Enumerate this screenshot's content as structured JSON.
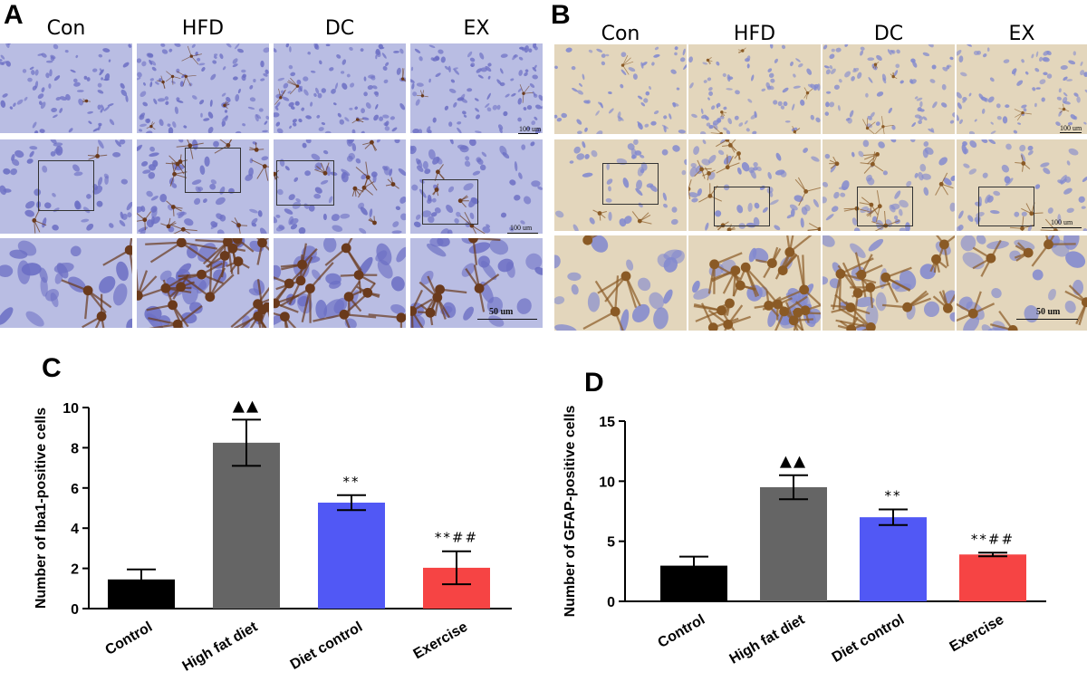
{
  "panels": {
    "a": {
      "letter": "A",
      "columns": [
        "Con",
        "HFD",
        "DC",
        "EX"
      ],
      "scale_top": "100 um",
      "scale_mid": "100 um",
      "scale_bottom": "50 um",
      "colors": {
        "bg": "#b9bde3",
        "nucleus": "#6c6fc4",
        "stain": "#6a3a1c"
      }
    },
    "b": {
      "letter": "B",
      "columns": [
        "Con",
        "HFD",
        "DC",
        "EX"
      ],
      "scale_top": "100 um",
      "scale_mid": "100 um",
      "scale_bottom": "50 um",
      "colors": {
        "bg": "#e3d6bc",
        "nucleus": "#8289cf",
        "stain": "#8a5a25"
      }
    },
    "c": {
      "letter": "C"
    },
    "d": {
      "letter": "D"
    }
  },
  "chart_data": [
    {
      "type": "bar",
      "panel": "C",
      "categories": [
        "Control",
        "High fat diet",
        "Diet control",
        "Exercise"
      ],
      "values": [
        1.45,
        8.25,
        5.27,
        2.03
      ],
      "errors": [
        0.5,
        1.15,
        0.37,
        0.82
      ],
      "colors": [
        "#000000",
        "#656565",
        "#5158f5",
        "#f64444"
      ],
      "annotations": [
        "",
        "▲▲",
        "**",
        "**##"
      ],
      "ylabel": "Number of Iba1-positive cells",
      "ylim": [
        0,
        10
      ],
      "yticks": [
        0,
        2,
        4,
        6,
        8,
        10
      ]
    },
    {
      "type": "bar",
      "panel": "D",
      "categories": [
        "Control",
        "High fat diet",
        "Diet control",
        "Exercise"
      ],
      "values": [
        2.97,
        9.5,
        7.0,
        3.9
      ],
      "errors": [
        0.75,
        1.0,
        0.65,
        0.15
      ],
      "colors": [
        "#000000",
        "#656565",
        "#5158f5",
        "#f64444"
      ],
      "annotations": [
        "",
        "▲▲",
        "**",
        "**##"
      ],
      "ylabel": "Number of GFAP-positive cells",
      "ylim": [
        0,
        15
      ],
      "yticks": [
        0,
        5,
        10,
        15
      ]
    }
  ]
}
